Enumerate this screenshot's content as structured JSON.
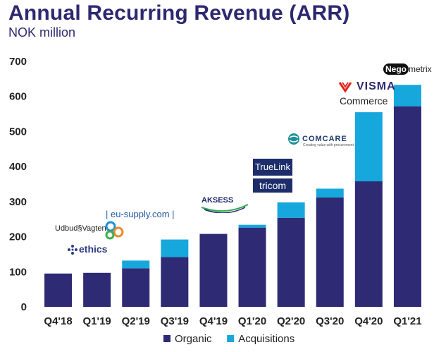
{
  "chart_data": {
    "type": "bar",
    "stacked": true,
    "title": "Annual Recurring Revenue (ARR)",
    "subtitle": "NOK million",
    "categories": [
      "Q4'18",
      "Q1'19",
      "Q2'19",
      "Q3'19",
      "Q4'19",
      "Q1'20",
      "Q2'20",
      "Q3'20",
      "Q4'20",
      "Q1'21"
    ],
    "series": [
      {
        "name": "Organic",
        "color": "#2e2a74",
        "values": [
          95,
          97,
          110,
          142,
          208,
          226,
          254,
          312,
          358,
          572
        ]
      },
      {
        "name": "Acquisitions",
        "color": "#16a7dc",
        "values": [
          0,
          0,
          22,
          50,
          0,
          8,
          44,
          25,
          197,
          61
        ]
      }
    ],
    "ylim": [
      0,
      700
    ],
    "yticks": [
      0,
      100,
      200,
      300,
      400,
      500,
      600,
      700
    ],
    "xlabel": "",
    "ylabel": "",
    "grid": false,
    "legend": "bottom-center"
  },
  "logos": {
    "eu_supply": "| eu-supply.com |",
    "udbud": "Udbud§Vagten",
    "ethics": "ethics",
    "aksess": "AKSESS",
    "truelink": "TrueLink",
    "tricom": "tricom",
    "comcare": "COMCARE",
    "comcare_tag": "Creating value with procurement",
    "visma": "VISMA",
    "commerce": "Commerce",
    "nego": "Nego",
    "metrix": "metrix"
  }
}
